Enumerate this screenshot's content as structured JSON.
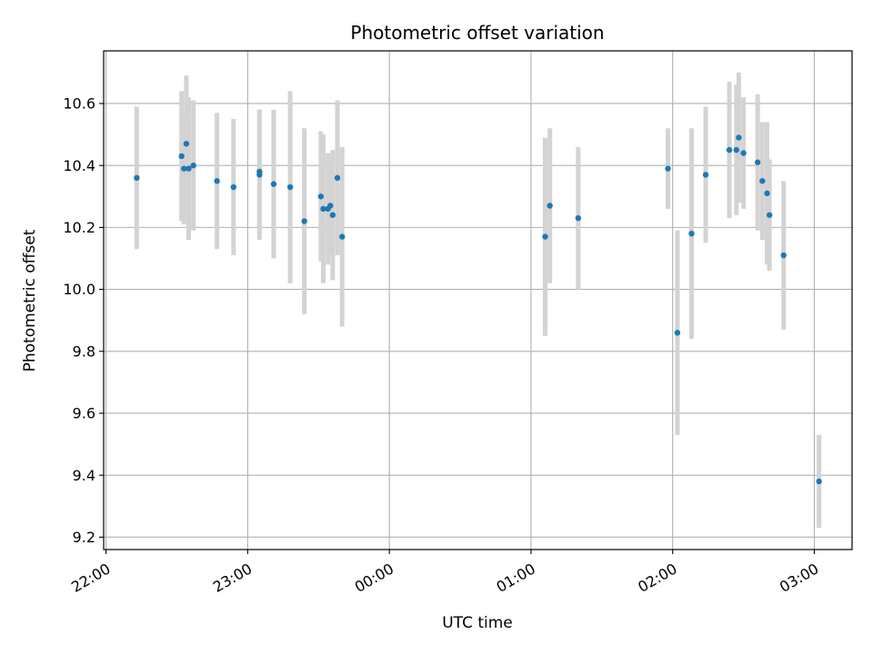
{
  "chart_data": {
    "type": "scatter",
    "title": "Photometric offset variation",
    "xlabel": "UTC time",
    "ylabel": "Photometric offset",
    "x_ticks": [
      "22:00",
      "23:00",
      "00:00",
      "01:00",
      "02:00",
      "03:00"
    ],
    "y_ticks": [
      "9.2",
      "9.4",
      "9.6",
      "9.8",
      "10.0",
      "10.2",
      "10.4",
      "10.6"
    ],
    "xlim": [
      "21:59",
      "03:16"
    ],
    "ylim": [
      9.16,
      10.77
    ],
    "grid": true,
    "colors": {
      "point": "#1f77b4",
      "errorbar": "#d3d3d3",
      "grid": "#b0b0b0"
    },
    "series": [
      {
        "points": [
          {
            "x": "22:13",
            "y": 10.36,
            "err": 0.23
          },
          {
            "x": "22:32",
            "y": 10.43,
            "err": 0.21
          },
          {
            "x": "22:33",
            "y": 10.39,
            "err": 0.18
          },
          {
            "x": "22:34",
            "y": 10.47,
            "err": 0.22
          },
          {
            "x": "22:35",
            "y": 10.39,
            "err": 0.23
          },
          {
            "x": "22:37",
            "y": 10.4,
            "err": 0.21
          },
          {
            "x": "22:47",
            "y": 10.35,
            "err": 0.22
          },
          {
            "x": "22:54",
            "y": 10.33,
            "err": 0.22
          },
          {
            "x": "23:05",
            "y": 10.37,
            "err": 0.21
          },
          {
            "x": "23:05",
            "y": 10.38,
            "err": 0.2
          },
          {
            "x": "23:11",
            "y": 10.34,
            "err": 0.24
          },
          {
            "x": "23:18",
            "y": 10.33,
            "err": 0.31
          },
          {
            "x": "23:24",
            "y": 10.22,
            "err": 0.3
          },
          {
            "x": "23:31",
            "y": 10.3,
            "err": 0.21
          },
          {
            "x": "23:32",
            "y": 10.26,
            "err": 0.24
          },
          {
            "x": "23:34",
            "y": 10.26,
            "err": 0.18
          },
          {
            "x": "23:35",
            "y": 10.27,
            "err": 0.16
          },
          {
            "x": "23:36",
            "y": 10.24,
            "err": 0.21
          },
          {
            "x": "23:38",
            "y": 10.36,
            "err": 0.25
          },
          {
            "x": "23:40",
            "y": 10.17,
            "err": 0.29
          },
          {
            "x": "01:06",
            "y": 10.17,
            "err": 0.32
          },
          {
            "x": "01:08",
            "y": 10.27,
            "err": 0.25
          },
          {
            "x": "01:20",
            "y": 10.23,
            "err": 0.23
          },
          {
            "x": "01:58",
            "y": 10.39,
            "err": 0.13
          },
          {
            "x": "02:02",
            "y": 9.86,
            "err": 0.33
          },
          {
            "x": "02:08",
            "y": 10.18,
            "err": 0.34
          },
          {
            "x": "02:14",
            "y": 10.37,
            "err": 0.22
          },
          {
            "x": "02:24",
            "y": 10.45,
            "err": 0.22
          },
          {
            "x": "02:27",
            "y": 10.45,
            "err": 0.21
          },
          {
            "x": "02:28",
            "y": 10.49,
            "err": 0.21
          },
          {
            "x": "02:30",
            "y": 10.44,
            "err": 0.18
          },
          {
            "x": "02:36",
            "y": 10.41,
            "err": 0.22
          },
          {
            "x": "02:38",
            "y": 10.35,
            "err": 0.19
          },
          {
            "x": "02:40",
            "y": 10.31,
            "err": 0.23
          },
          {
            "x": "02:41",
            "y": 10.24,
            "err": 0.18
          },
          {
            "x": "02:47",
            "y": 10.11,
            "err": 0.24
          },
          {
            "x": "03:02",
            "y": 9.38,
            "err": 0.15
          }
        ]
      }
    ]
  }
}
